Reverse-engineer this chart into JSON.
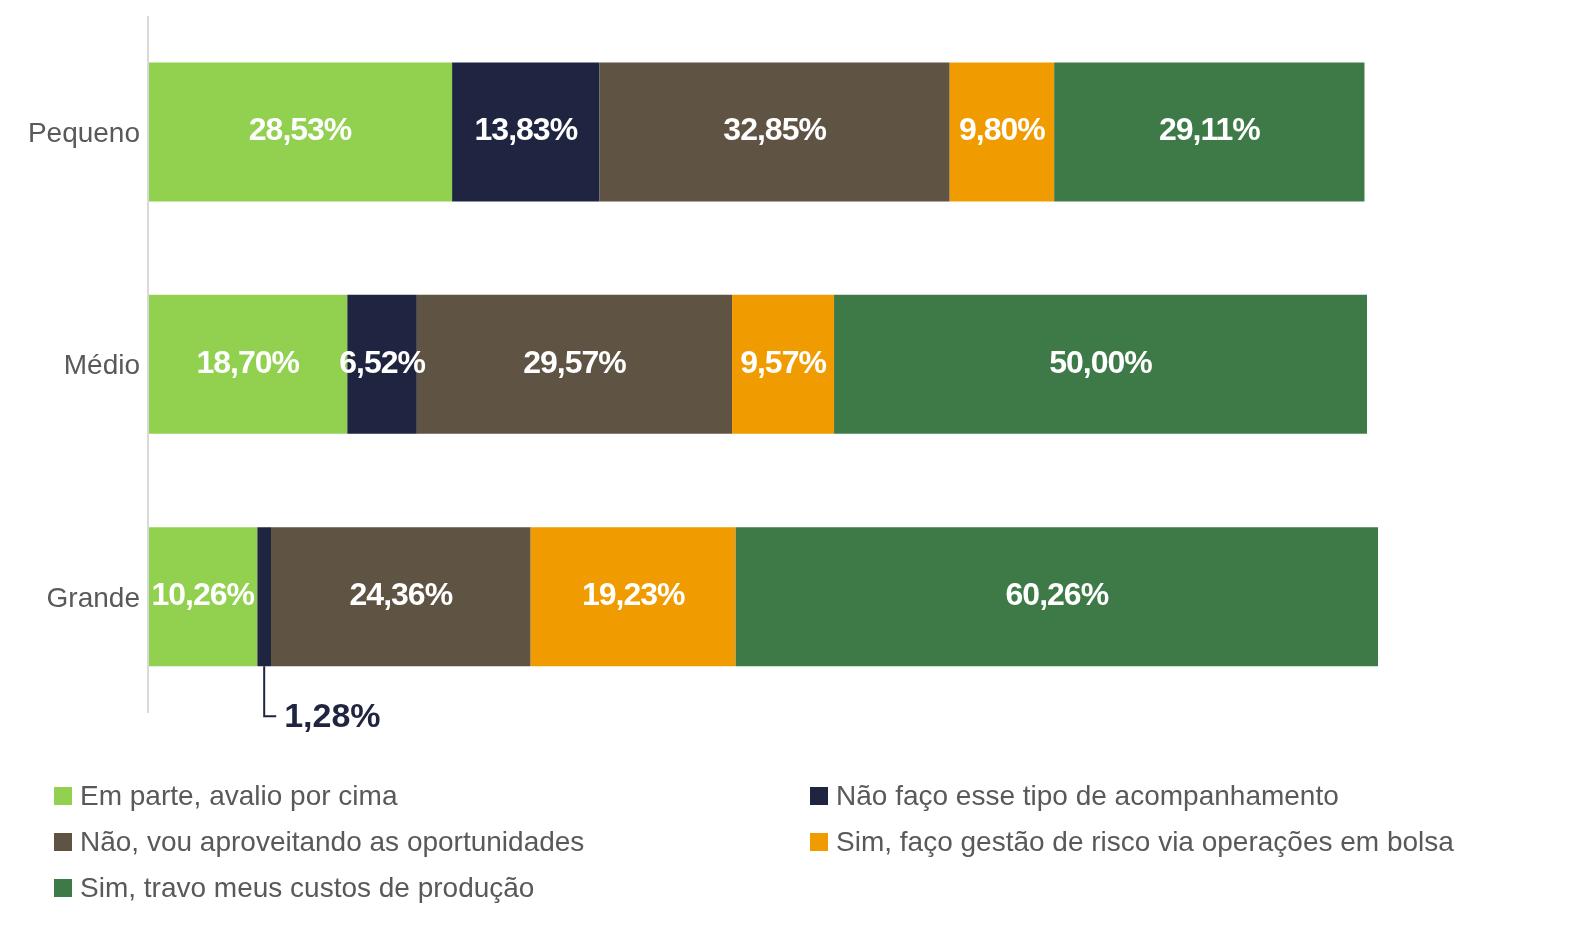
{
  "chart_data": {
    "type": "bar",
    "orientation": "horizontal",
    "stacked": true,
    "legend": "bottom",
    "grid": false,
    "categories": [
      "Pequeno",
      "Médio",
      "Grande"
    ],
    "series": [
      {
        "name": "Em parte, avalio por cima",
        "color": "#92d050",
        "values": [
          28.53,
          18.7,
          10.26
        ],
        "value_labels": [
          "28,53%",
          "18,70%",
          "10,26%"
        ]
      },
      {
        "name": "Não faço esse tipo de acompanhamento",
        "color": "#1f2540",
        "values": [
          13.83,
          6.52,
          1.28
        ],
        "value_labels": [
          "13,83%",
          "6,52%",
          "1,28%"
        ]
      },
      {
        "name": "Não, vou aproveitando as oportunidades",
        "color": "#5f5343",
        "values": [
          32.85,
          29.57,
          24.36
        ],
        "value_labels": [
          "32,85%",
          "29,57%",
          "24,36%"
        ]
      },
      {
        "name": "Sim, faço gestão de risco via operações em bolsa",
        "color": "#f09c00",
        "values": [
          9.8,
          9.57,
          19.23
        ],
        "value_labels": [
          "9,80%",
          "9,57%",
          "19,23%"
        ]
      },
      {
        "name": "Sim, travo meus custos de produção",
        "color": "#3d7a47",
        "values": [
          29.11,
          50.0,
          60.26
        ],
        "value_labels": [
          "29,11%",
          "50,00%",
          "60,26%"
        ]
      }
    ]
  }
}
